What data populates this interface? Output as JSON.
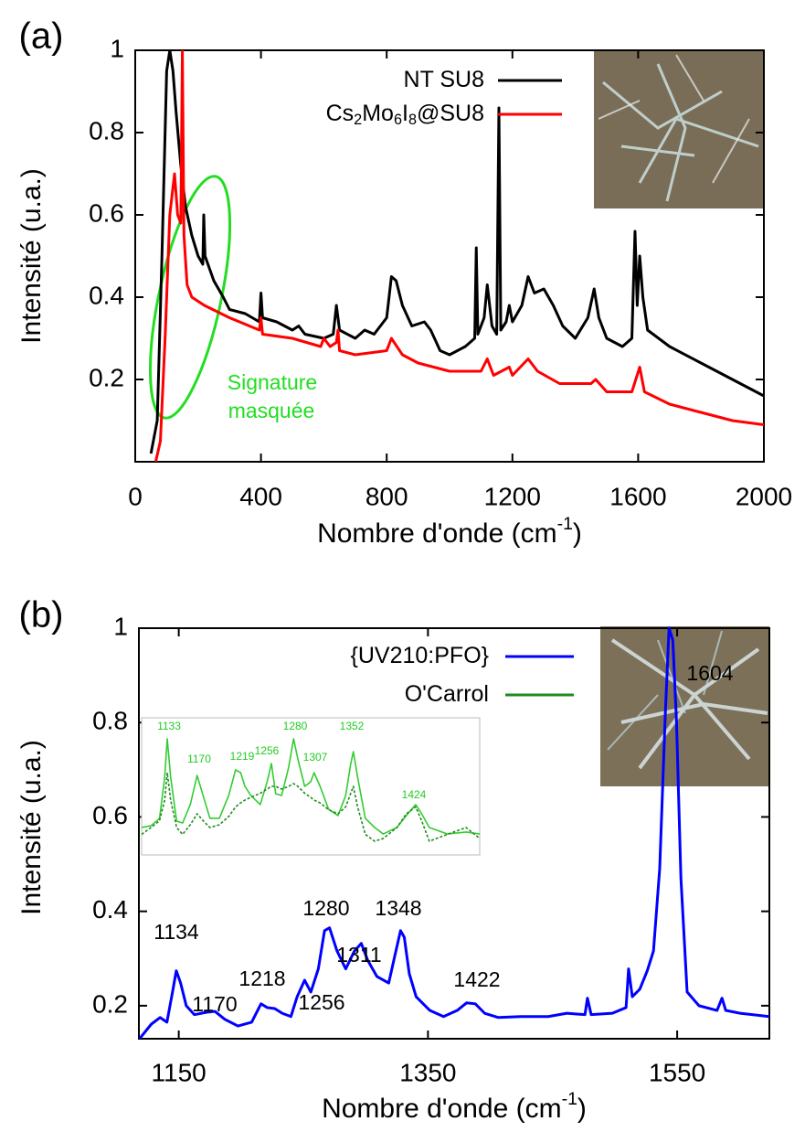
{
  "chart_data": [
    {
      "type": "line",
      "panel_label": "(a)",
      "x_label": "Nombre d'onde (cm-1)",
      "y_label": "Intensité (u.a.)",
      "xlim": [
        0,
        2000
      ],
      "xticks": [
        0,
        400,
        800,
        1200,
        1600,
        2000
      ],
      "ylim": [
        0,
        1
      ],
      "yticks": [
        0.2,
        0.4,
        0.6,
        0.8,
        1
      ],
      "series": [
        {
          "name": "NT SU8",
          "color": "#000000",
          "x": [
            50,
            70,
            85,
            100,
            110,
            120,
            130,
            145,
            160,
            180,
            200,
            215,
            218,
            222,
            250,
            280,
            300,
            350,
            395,
            400,
            405,
            450,
            500,
            520,
            540,
            600,
            630,
            640,
            650,
            700,
            730,
            760,
            800,
            815,
            830,
            850,
            880,
            920,
            940,
            970,
            1000,
            1050,
            1080,
            1085,
            1090,
            1110,
            1120,
            1135,
            1150,
            1157,
            1163,
            1180,
            1190,
            1200,
            1230,
            1250,
            1270,
            1300,
            1330,
            1360,
            1400,
            1440,
            1460,
            1475,
            1500,
            1550,
            1580,
            1590,
            1597,
            1605,
            1615,
            1630,
            1700,
            1800,
            1900,
            2000
          ],
          "values": [
            0.02,
            0.1,
            0.5,
            0.95,
            1.0,
            0.95,
            0.85,
            0.72,
            0.62,
            0.55,
            0.5,
            0.48,
            0.6,
            0.5,
            0.44,
            0.4,
            0.37,
            0.36,
            0.34,
            0.41,
            0.35,
            0.34,
            0.32,
            0.33,
            0.31,
            0.3,
            0.31,
            0.38,
            0.32,
            0.3,
            0.32,
            0.31,
            0.35,
            0.45,
            0.44,
            0.38,
            0.33,
            0.34,
            0.32,
            0.27,
            0.26,
            0.28,
            0.3,
            0.52,
            0.31,
            0.35,
            0.43,
            0.33,
            0.31,
            0.86,
            0.32,
            0.34,
            0.38,
            0.34,
            0.38,
            0.45,
            0.41,
            0.42,
            0.38,
            0.33,
            0.3,
            0.35,
            0.42,
            0.35,
            0.3,
            0.28,
            0.3,
            0.56,
            0.38,
            0.5,
            0.4,
            0.32,
            0.28,
            0.24,
            0.2,
            0.16
          ]
        },
        {
          "name": "Cs2Mo6I8@SU8",
          "color": "#ff0000",
          "x": [
            65,
            80,
            95,
            110,
            125,
            135,
            145,
            150,
            155,
            165,
            180,
            220,
            300,
            395,
            400,
            405,
            500,
            590,
            600,
            620,
            640,
            645,
            650,
            700,
            800,
            815,
            850,
            900,
            1000,
            1100,
            1120,
            1140,
            1190,
            1200,
            1250,
            1280,
            1350,
            1450,
            1465,
            1500,
            1580,
            1605,
            1620,
            1700,
            1800,
            1900,
            2000
          ],
          "values": [
            0.0,
            0.05,
            0.3,
            0.6,
            0.7,
            0.6,
            0.58,
            1.0,
            0.55,
            0.43,
            0.4,
            0.38,
            0.35,
            0.32,
            0.35,
            0.31,
            0.3,
            0.28,
            0.3,
            0.28,
            0.29,
            0.32,
            0.27,
            0.26,
            0.27,
            0.3,
            0.26,
            0.24,
            0.22,
            0.22,
            0.25,
            0.21,
            0.23,
            0.21,
            0.25,
            0.22,
            0.19,
            0.19,
            0.2,
            0.17,
            0.17,
            0.23,
            0.17,
            0.14,
            0.12,
            0.1,
            0.09
          ]
        }
      ],
      "annotations": [
        "Signature",
        "masquée"
      ]
    },
    {
      "type": "line",
      "panel_label": "(b)",
      "x_label": "Nombre d'onde (cm-1)",
      "y_label": "Intensité (u.a.)",
      "xlim": [
        1118,
        1624
      ],
      "xticks": [
        1150,
        1350,
        1550
      ],
      "ylim": [
        0.13,
        1
      ],
      "yticks": [
        0.2,
        0.4,
        0.6,
        0.8,
        1
      ],
      "series": [
        {
          "name": "{UV210:PFO}",
          "color": "#0000ff",
          "x": [
            1118.5,
            1128,
            1135,
            1140.5,
            1145,
            1148,
            1151.5,
            1156,
            1162.5,
            1172,
            1179,
            1187,
            1197.5,
            1208.5,
            1216,
            1221,
            1227,
            1233,
            1240,
            1245,
            1251,
            1256,
            1262,
            1267,
            1271,
            1277,
            1284,
            1291,
            1296.5,
            1301.5,
            1309,
            1318.5,
            1323.5,
            1328,
            1331,
            1335,
            1340.5,
            1351.5,
            1362.5,
            1373.5,
            1381,
            1388,
            1395.5,
            1406.5,
            1424.5,
            1446.5,
            1461.5,
            1476,
            1478,
            1481,
            1498,
            1509,
            1511,
            1514,
            1520,
            1526,
            1531,
            1536,
            1540.5,
            1543.5,
            1546.5,
            1549.5,
            1553,
            1558,
            1567.5,
            1582,
            1586,
            1589,
            1600.5,
            1624
          ],
          "values": [
            0.13,
            0.161,
            0.175,
            0.165,
            0.229,
            0.274,
            0.248,
            0.2,
            0.181,
            0.186,
            0.188,
            0.171,
            0.157,
            0.165,
            0.204,
            0.196,
            0.194,
            0.184,
            0.177,
            0.219,
            0.254,
            0.229,
            0.278,
            0.359,
            0.365,
            0.316,
            0.278,
            0.316,
            0.332,
            0.297,
            0.262,
            0.248,
            0.307,
            0.359,
            0.345,
            0.268,
            0.219,
            0.19,
            0.177,
            0.19,
            0.206,
            0.204,
            0.184,
            0.175,
            0.177,
            0.177,
            0.184,
            0.181,
            0.216,
            0.181,
            0.184,
            0.196,
            0.278,
            0.219,
            0.235,
            0.274,
            0.316,
            0.491,
            0.82,
            1.0,
            0.975,
            0.8,
            0.471,
            0.229,
            0.2,
            0.19,
            0.216,
            0.19,
            0.184,
            0.177
          ]
        }
      ],
      "annotations": [
        "1604",
        "1134",
        "1170",
        "1218",
        "1256",
        "1280",
        "1311",
        "1348",
        "1422"
      ]
    },
    {
      "type": "line",
      "xlim": [
        1103,
        1499
      ],
      "ylim": [
        0,
        1
      ],
      "series": [
        {
          "color": "#33cc33",
          "x": [
            1103,
            1114,
            1124,
            1130,
            1133,
            1137,
            1144,
            1151,
            1160,
            1168,
            1175,
            1183,
            1194,
            1205,
            1213,
            1219,
            1224,
            1231,
            1242,
            1250,
            1255,
            1260,
            1267,
            1275,
            1281,
            1286,
            1294,
            1301,
            1305,
            1312,
            1322,
            1333,
            1342,
            1348,
            1351,
            1356,
            1365,
            1376,
            1386,
            1402,
            1413,
            1424,
            1431,
            1440,
            1461,
            1483,
            1499
          ],
          "values": [
            0.2,
            0.213,
            0.267,
            0.567,
            0.847,
            0.567,
            0.247,
            0.233,
            0.367,
            0.58,
            0.433,
            0.267,
            0.267,
            0.433,
            0.62,
            0.6,
            0.5,
            0.433,
            0.367,
            0.533,
            0.667,
            0.447,
            0.433,
            0.633,
            0.847,
            0.7,
            0.5,
            0.533,
            0.6,
            0.5,
            0.333,
            0.287,
            0.433,
            0.667,
            0.753,
            0.567,
            0.267,
            0.2,
            0.153,
            0.2,
            0.287,
            0.367,
            0.3,
            0.2,
            0.153,
            0.167,
            0.153
          ]
        },
        {
          "name": "O'Carrol",
          "color": "#1e8c1e",
          "dashed": true,
          "x": [
            1103,
            1114,
            1124,
            1130,
            1133,
            1137,
            1144,
            1151,
            1160,
            1168,
            1175,
            1183,
            1194,
            1205,
            1213,
            1219,
            1224,
            1231,
            1242,
            1250,
            1255,
            1260,
            1267,
            1275,
            1281,
            1286,
            1294,
            1301,
            1305,
            1312,
            1322,
            1333,
            1342,
            1348,
            1351,
            1356,
            1365,
            1376,
            1386,
            1402,
            1413,
            1424,
            1431,
            1440,
            1461,
            1483,
            1499
          ],
          "values": [
            0.15,
            0.2,
            0.25,
            0.4,
            0.6,
            0.4,
            0.2,
            0.15,
            0.22,
            0.3,
            0.25,
            0.2,
            0.22,
            0.28,
            0.35,
            0.38,
            0.4,
            0.42,
            0.45,
            0.48,
            0.5,
            0.5,
            0.48,
            0.5,
            0.52,
            0.5,
            0.45,
            0.42,
            0.4,
            0.38,
            0.33,
            0.3,
            0.35,
            0.45,
            0.5,
            0.35,
            0.15,
            0.1,
            0.12,
            0.2,
            0.3,
            0.35,
            0.25,
            0.1,
            0.15,
            0.2,
            0.12
          ]
        }
      ],
      "annotations": [
        "1133",
        "1170",
        "1219",
        "1256",
        "1280",
        "1307",
        "1352",
        "1424"
      ]
    }
  ]
}
